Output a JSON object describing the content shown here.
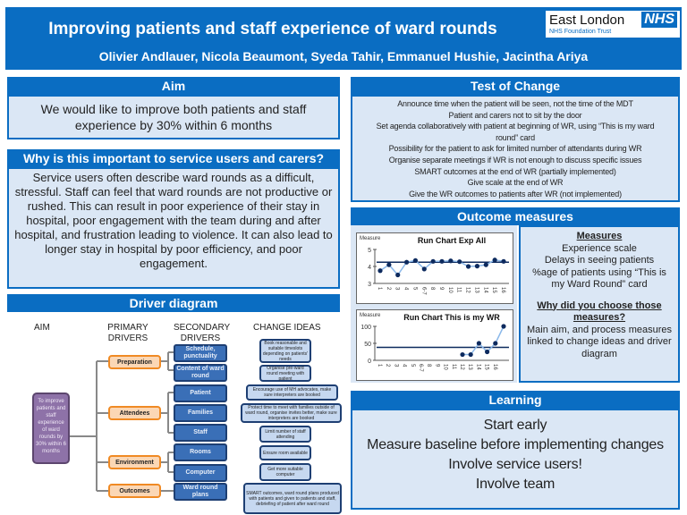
{
  "header": {
    "title": "Improving patients and staff experience of ward rounds",
    "authors": "Olivier Andlauer, Nicola Beaumont, Syeda Tahir, Emmanuel Hushie, Jacintha Ariya",
    "logo": {
      "org": "East London",
      "nhs": "NHS",
      "trust": "NHS Foundation Trust"
    }
  },
  "aim": {
    "heading": "Aim",
    "text": "We would like to improve both patients and staff experience by 30% within 6 months"
  },
  "why": {
    "heading": "Why is this important to service users and carers?",
    "text": "Service users often describe ward rounds as a difficult, stressful. Staff can feel that ward rounds are not productive or rushed. This can result in poor experience of their stay in hospital, poor engagement with the team during and after hospital, and frustration leading to violence. It can also lead to longer stay in hospital by poor efficiency, and poor engagement."
  },
  "driver": {
    "heading": "Driver diagram",
    "columns": [
      "AIM",
      "PRIMARY DRIVERS",
      "SECONDARY DRIVERS",
      "CHANGE IDEAS"
    ],
    "aim_box": "To improve patients and staff experience of ward rounds by 30% within 6 months",
    "primary": [
      "Preparation",
      "Attendees",
      "Environment",
      "Outcomes"
    ],
    "secondary": [
      "Schedule, punctuality",
      "Content of ward round",
      "Patient",
      "Families",
      "Staff",
      "Rooms",
      "Computer",
      "Ward round plans"
    ],
    "ideas": [
      "Book reasonable and suitable timeslots depending on patients' needs",
      "Organise pre-ward round meeting with patient",
      "Encourage use of MH advocates, make sure interpreters are booked",
      "Protect time to meet with families outside of ward round, organise invites better, make sure interpreters are booked",
      "Limit number of staff attending",
      "Ensure room available",
      "Get more suitable computer",
      "SMART outcomes, ward round plans produced with patients and given to patients and staff, debriefing of patient after ward round"
    ]
  },
  "test": {
    "heading": "Test of Change",
    "items": [
      "Announce time when the patient will be seen, not the time of the MDT",
      "Patient and carers not to sit by the door",
      "Set agenda collaboratively with patient at beginning of WR, using “This is my ward",
      "round” card",
      "Possibility for the patient to ask for limited number of attendants during WR",
      "Organise separate meetings if WR is not enough to discuss specific issues",
      "SMART outcomes at the end of WR (partially implemented)",
      "Give scale at the end of WR",
      "Give the WR outcomes to patients after WR (not implemented)"
    ]
  },
  "outcome": {
    "heading": "Outcome measures",
    "measures_title": "Measures",
    "measures": [
      "Experience scale",
      "Delays in seeing patients",
      "%age of patients using “This is my Ward Round” card"
    ],
    "why_title": "Why did you choose those measures?",
    "why_text": "Main aim, and process measures linked to change ideas and driver diagram"
  },
  "chart_data": [
    {
      "type": "line",
      "title": "Run Chart Exp All",
      "ylabel": "Measure",
      "categories": [
        "1",
        "2",
        "3",
        "4",
        "5",
        "6-7",
        "8",
        "9",
        "10",
        "11",
        "12",
        "13",
        "14",
        "15",
        "16"
      ],
      "values": [
        3.75,
        4.1,
        3.5,
        4.25,
        4.35,
        3.85,
        4.3,
        4.3,
        4.33,
        4.28,
        4.0,
        4.02,
        4.1,
        4.38,
        4.3
      ],
      "median": 4.25,
      "ylim": [
        3,
        5
      ],
      "yticks": [
        "3",
        "4",
        "5"
      ],
      "line_color": "#8ab8ea",
      "point_color": "#0d2a5e"
    },
    {
      "type": "line",
      "title": "Run Chart This is my WR",
      "ylabel": "Measure",
      "categories": [
        "1",
        "2",
        "3",
        "4",
        "5",
        "6-7",
        "8",
        "9",
        "10",
        "11",
        "12",
        "13",
        "14",
        "15",
        "16",
        ""
      ],
      "values": [
        null,
        null,
        null,
        null,
        null,
        null,
        null,
        null,
        null,
        null,
        17,
        17,
        50,
        25,
        50,
        100
      ],
      "median": 38,
      "ylim": [
        0,
        100
      ],
      "yticks": [
        "0",
        "50",
        "100"
      ],
      "line_color": "#8ab8ea",
      "point_color": "#0d2a5e"
    }
  ],
  "learning": {
    "heading": "Learning",
    "items": [
      "Start early",
      "Measure baseline before implementing changes",
      "Involve service users!",
      "Involve team"
    ]
  },
  "colors": {
    "primary_blue": "#0a6dc2",
    "box_fill": "#dbe7f5",
    "orange": "#f08a24",
    "purple": "#8e72a8"
  }
}
